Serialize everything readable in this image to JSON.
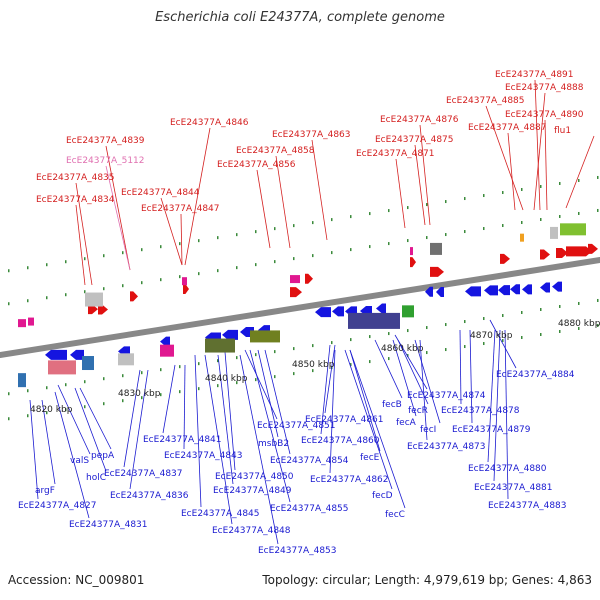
{
  "title": "Escherichia coli E24377A, complete genome",
  "footer": {
    "accession": "Accession: NC_009801",
    "summary": "Topology: circular; Length: 4,979,619 bp; Genes: 4,863"
  },
  "colors": {
    "top_label": "#d42020",
    "top_label_pink": "#e070b0",
    "bottom_label": "#1a1ad0",
    "forward_feature": "#e01010",
    "reverse_feature": "#1515e0",
    "backbone": "#888888"
  },
  "kbp_ticks": [
    "4820 kbp",
    "4830 kbp",
    "4840 kbp",
    "4850 kbp",
    "4860 kbp",
    "4870 kbp",
    "4880 kbp"
  ],
  "top_labels": [
    "EcE24377A_4891",
    "EcE24377A_4888",
    "EcE24377A_4885",
    "EcE24377A_4890",
    "EcE24377A_4887",
    "flu1",
    "EcE24377A_4876",
    "EcE24377A_4875",
    "EcE24377A_4871",
    "EcE24377A_4846",
    "EcE24377A_4863",
    "EcE24377A_4858",
    "EcE24377A_4856",
    "EcE24377A_4839",
    "EcE24377A_5112",
    "EcE24377A_4835",
    "EcE24377A_4834",
    "EcE24377A_4844",
    "EcE24377A_4847"
  ],
  "bottom_labels": [
    "EcE24377A_4874",
    "fecB",
    "fecR",
    "fecA",
    "fecI",
    "EcE24377A_4878",
    "EcE24377A_4879",
    "EcE24377A_4873",
    "EcE24377A_4861",
    "EcE24377A_4860",
    "fecE",
    "EcE24377A_4862",
    "fecD",
    "fecC",
    "EcE24377A_4851",
    "msbB2",
    "EcE24377A_4854",
    "EcE24377A_4850",
    "EcE24377A_4849",
    "EcE24377A_4845",
    "EcE24377A_4848",
    "EcE24377A_4855",
    "EcE24377A_4853",
    "EcE24377A_4841",
    "EcE24377A_4843",
    "EcE24377A_4837",
    "EcE24377A_4836",
    "valS",
    "pepA",
    "holC",
    "argF",
    "EcE24377A_4827",
    "EcE24377A_4831",
    "EcE24377A_4884",
    "EcE24377A_4880",
    "EcE24377A_4881",
    "EcE24377A_4883"
  ]
}
